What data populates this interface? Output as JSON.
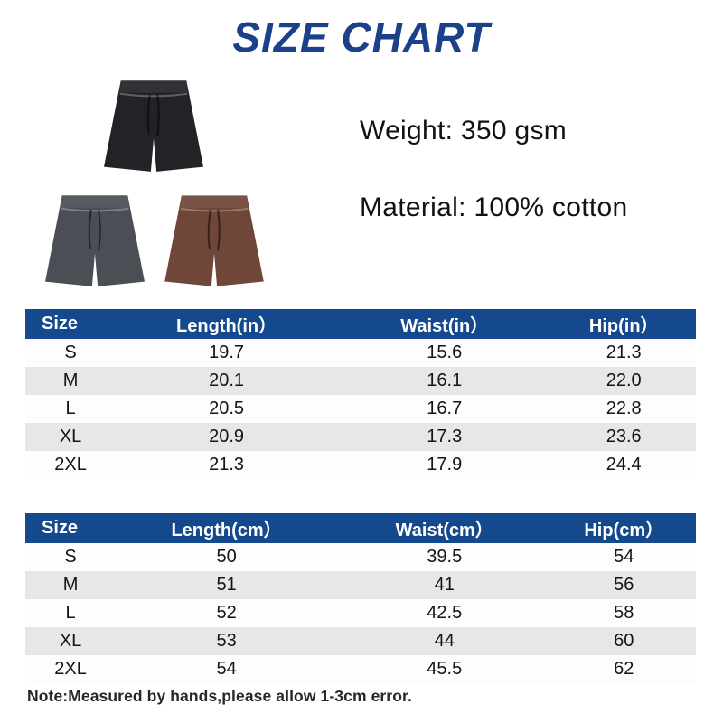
{
  "page": {
    "title": "SIZE CHART",
    "specs": {
      "weight": "Weight: 350 gsm",
      "material": "Material: 100% cotton"
    },
    "note": "Note:Measured by hands,please allow 1-3cm error."
  },
  "products": [
    {
      "name": "black-shorts",
      "color": "#232327"
    },
    {
      "name": "charcoal-shorts",
      "color": "#4c4e55"
    },
    {
      "name": "brown-shorts",
      "color": "#6f4637"
    }
  ],
  "colors": {
    "title": "#1a4189",
    "table_header_bg": "#15498e",
    "table_header_text": "#ffffff",
    "row_stripe": "#e7e7e7",
    "body_text": "#141414"
  },
  "tables": [
    {
      "name": "inches",
      "headers": [
        "Size",
        "Length(in）",
        "Waist(in）",
        "Hip(in）"
      ],
      "rows": [
        [
          "S",
          "19.7",
          "15.6",
          "21.3"
        ],
        [
          "M",
          "20.1",
          "16.1",
          "22.0"
        ],
        [
          "L",
          "20.5",
          "16.7",
          "22.8"
        ],
        [
          "XL",
          "20.9",
          "17.3",
          "23.6"
        ],
        [
          "2XL",
          "21.3",
          "17.9",
          "24.4"
        ]
      ]
    },
    {
      "name": "centimeters",
      "headers": [
        "Size",
        "Length(cm）",
        "Waist(cm）",
        "Hip(cm）"
      ],
      "rows": [
        [
          "S",
          "50",
          "39.5",
          "54"
        ],
        [
          "M",
          "51",
          "41",
          "56"
        ],
        [
          "L",
          "52",
          "42.5",
          "58"
        ],
        [
          "XL",
          "53",
          "44",
          "60"
        ],
        [
          "2XL",
          "54",
          "45.5",
          "62"
        ]
      ]
    }
  ]
}
